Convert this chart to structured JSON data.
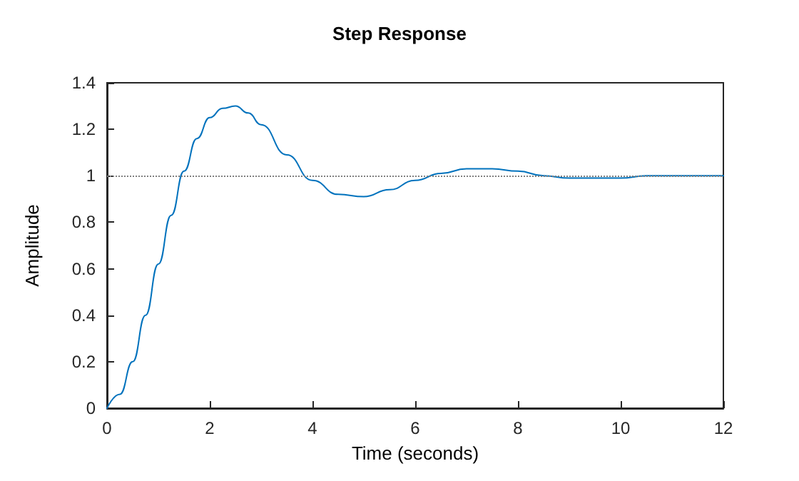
{
  "chart_data": {
    "type": "line",
    "title": "Step Response",
    "xlabel": "Time (seconds)",
    "ylabel": "Amplitude",
    "x": [
      0,
      0.25,
      0.5,
      0.75,
      1,
      1.25,
      1.5,
      1.75,
      2,
      2.25,
      2.5,
      2.75,
      3,
      3.5,
      4,
      4.5,
      5,
      5.5,
      6,
      6.5,
      7,
      7.5,
      8,
      8.5,
      9,
      9.5,
      10,
      10.5,
      11,
      11.5,
      12
    ],
    "series": [
      {
        "color": "#0072bd",
        "values": [
          0,
          0.06,
          0.2,
          0.4,
          0.62,
          0.83,
          1.02,
          1.16,
          1.25,
          1.29,
          1.3,
          1.27,
          1.22,
          1.09,
          0.98,
          0.92,
          0.91,
          0.94,
          0.98,
          1.01,
          1.03,
          1.03,
          1.02,
          1.0,
          0.99,
          0.99,
          0.99,
          1.0,
          1.0,
          1.0,
          1.0
        ]
      }
    ],
    "xlim": [
      0,
      12
    ],
    "xticks": [
      0,
      2,
      4,
      6,
      8,
      10,
      12
    ],
    "ylim": [
      0,
      1.4
    ],
    "yticks": [
      0,
      0.2,
      0.4,
      0.6,
      0.8,
      1,
      1.2,
      1.4
    ],
    "ref_lines": [
      {
        "axis": "y",
        "value": 1,
        "color": "#808080",
        "line_style": "dotted"
      }
    ],
    "grid": false,
    "marker": "none",
    "line_style": "solid"
  }
}
